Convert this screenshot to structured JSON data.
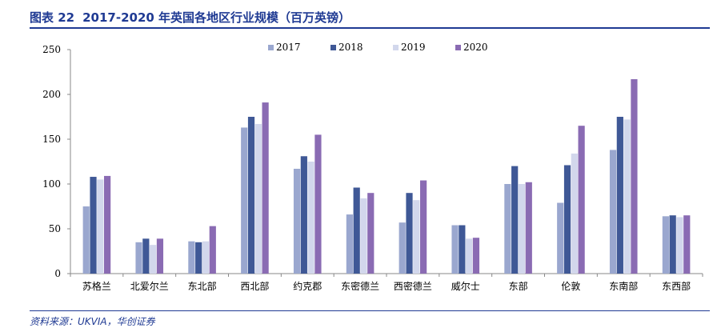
{
  "header": {
    "figure_number": "图表 22",
    "title": "2017-2020 年英国各地区行业规模（百万英镑）"
  },
  "footer": {
    "source": "资料来源：UKVIA，华创证券"
  },
  "colors": {
    "header_blue": "#1f3a93",
    "series_2017": "#9aa7cf",
    "series_2018": "#3f5896",
    "series_2019": "#d2d7ec",
    "series_2020": "#8a6bb3"
  },
  "chart_data": {
    "type": "bar",
    "title": "",
    "xlabel": "",
    "ylabel": "",
    "ylim": [
      0,
      250
    ],
    "yticks": [
      0,
      50,
      100,
      150,
      200,
      250
    ],
    "grid": false,
    "legend_position": "top-center",
    "categories": [
      "苏格兰",
      "北爱尔兰",
      "东北部",
      "西北部",
      "约克郡",
      "东密德兰",
      "西密德兰",
      "威尔士",
      "东部",
      "伦敦",
      "东南部",
      "东西部"
    ],
    "series": [
      {
        "name": "2017",
        "color": "#9aa7cf",
        "values": [
          75,
          35,
          36,
          163,
          117,
          66,
          57,
          54,
          100,
          79,
          138,
          64
        ]
      },
      {
        "name": "2018",
        "color": "#3f5896",
        "values": [
          108,
          39,
          35,
          175,
          131,
          96,
          90,
          54,
          120,
          121,
          175,
          65
        ]
      },
      {
        "name": "2019",
        "color": "#d2d7ec",
        "values": [
          105,
          32,
          36,
          167,
          125,
          84,
          82,
          39,
          100,
          134,
          172,
          63
        ]
      },
      {
        "name": "2020",
        "color": "#8a6bb3",
        "values": [
          109,
          39,
          53,
          191,
          155,
          90,
          104,
          40,
          102,
          165,
          217,
          65
        ]
      }
    ]
  }
}
